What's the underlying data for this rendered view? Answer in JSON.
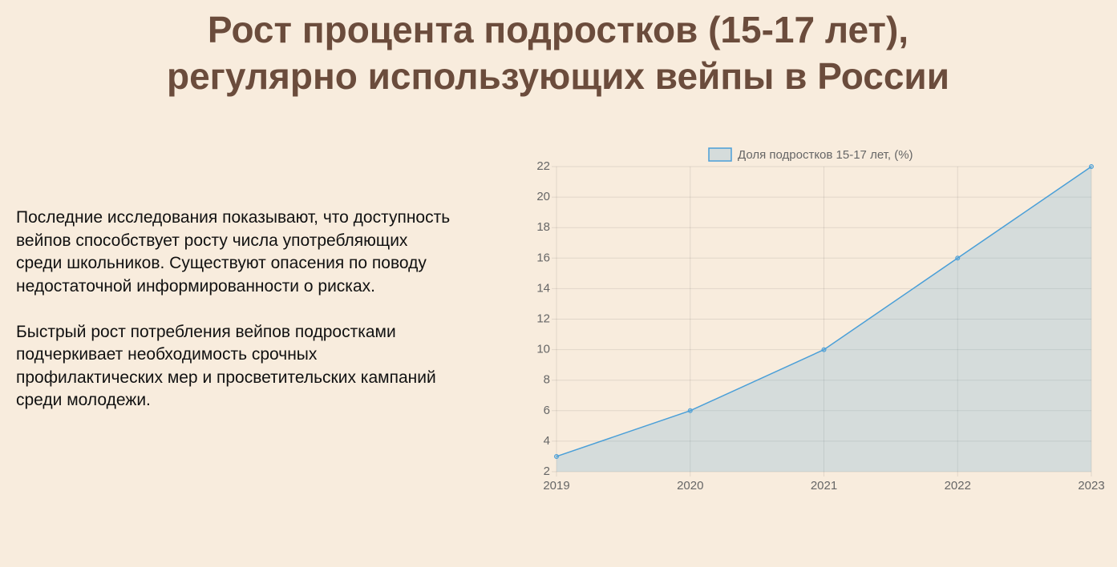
{
  "title": "Рост процента подростков (15-17 лет), регулярно использующих вейпы в России",
  "paragraphs": [
    "Последние исследования показывают, что доступность вейпов способствует росту числа употребляющих среди школьников. Существуют опасения по поводу недостаточной информированности о рисках.",
    "Быстрый рост потребления вейпов подростками подчеркивает необходимость срочных профилактических мер и просветительских кампаний среди молодежи."
  ],
  "chart_data": {
    "type": "line",
    "x": [
      2019,
      2020,
      2021,
      2022,
      2023
    ],
    "series": [
      {
        "name": "Доля подростков 15-17 лет, (%)",
        "color": "#4a9fd8",
        "values": [
          3,
          6,
          10,
          16,
          22
        ]
      }
    ],
    "fill": true,
    "xlim": [
      2019,
      2023
    ],
    "xticks": [
      2019,
      2020,
      2021,
      2022,
      2023
    ],
    "ylim": [
      2,
      22
    ],
    "yticks": [
      2,
      4,
      6,
      8,
      10,
      12,
      14,
      16,
      18,
      20,
      22
    ],
    "grid": true,
    "legend": "top"
  }
}
